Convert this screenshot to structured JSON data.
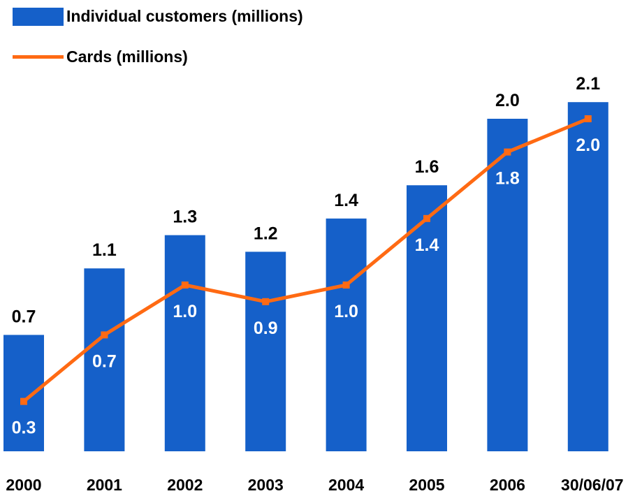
{
  "chart_data": {
    "type": "bar",
    "categories": [
      "2000",
      "2001",
      "2002",
      "2003",
      "2004",
      "2005",
      "2006",
      "30/06/07"
    ],
    "series": [
      {
        "name": "Individual customers (millions)",
        "type": "bar",
        "values": [
          0.7,
          1.1,
          1.3,
          1.2,
          1.4,
          1.6,
          2.0,
          2.1
        ],
        "labels": [
          "0.7",
          "1.1",
          "1.3",
          "1.2",
          "1.4",
          "1.6",
          "2.0",
          "2.1"
        ],
        "color": "#1560C9"
      },
      {
        "name": "Cards (millions)",
        "type": "line",
        "values": [
          0.3,
          0.7,
          1.0,
          0.9,
          1.0,
          1.4,
          1.8,
          2.0
        ],
        "labels": [
          "0.3",
          "0.7",
          "1.0",
          "0.9",
          "1.0",
          "1.4",
          "1.8",
          "2.0"
        ],
        "color": "#FF6A13"
      }
    ],
    "legend_position": "top-left",
    "grid": false,
    "ylim": [
      0,
      2.5
    ]
  }
}
